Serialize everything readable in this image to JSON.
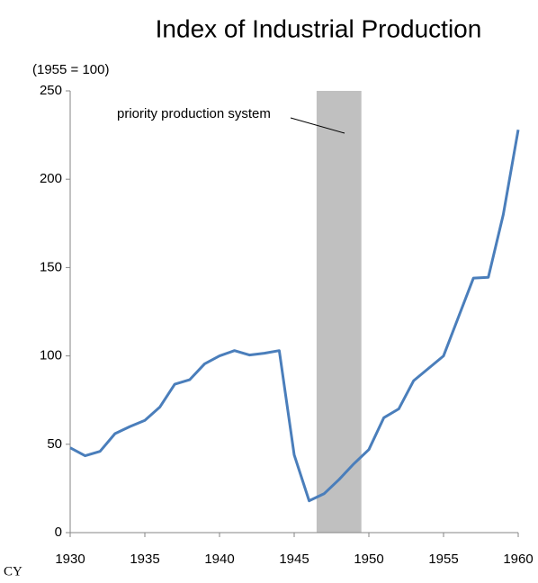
{
  "chart_data": {
    "type": "line",
    "title": "Index of Industrial Production",
    "y_axis_label": "(1955 = 100)",
    "x_axis_label": "CY",
    "x": [
      1930,
      1931,
      1932,
      1933,
      1934,
      1935,
      1936,
      1937,
      1938,
      1939,
      1940,
      1941,
      1942,
      1943,
      1944,
      1945,
      1946,
      1947,
      1948,
      1949,
      1950,
      1951,
      1952,
      1953,
      1954,
      1955,
      1956,
      1957,
      1958,
      1959,
      1960
    ],
    "series": [
      {
        "color": "#4a7ebb",
        "values": [
          48,
          43.5,
          46,
          56,
          60,
          63.5,
          71,
          84,
          86.5,
          95.5,
          100,
          103,
          100.5,
          101.5,
          103,
          44,
          18,
          22,
          30,
          39,
          47,
          65,
          70,
          86,
          93,
          100,
          122,
          144,
          144.5,
          180,
          228
        ]
      }
    ],
    "xlim": [
      1930,
      1960
    ],
    "xticks": [
      1930,
      1935,
      1940,
      1945,
      1950,
      1955,
      1960
    ],
    "ylim": [
      0,
      250
    ],
    "yticks": [
      0,
      50,
      100,
      150,
      200,
      250
    ],
    "shaded_region": {
      "xlim": [
        1946.5,
        1949.5
      ],
      "color": "#c0c0c0",
      "label": "priority production system"
    },
    "grid": false
  }
}
